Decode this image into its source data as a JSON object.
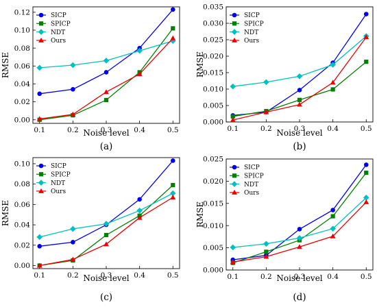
{
  "chart_data": [
    {
      "type": "line",
      "panel_label": "(a)",
      "xlabel": "Noise level",
      "ylabel": "RMSE",
      "x": [
        0.1,
        0.2,
        0.3,
        0.4,
        0.5
      ],
      "xlim": [
        0.08,
        0.52
      ],
      "ylim": [
        -0.004,
        0.126
      ],
      "xticks": [
        "0.1",
        "0.2",
        "0.3",
        "0.4",
        "0.5"
      ],
      "yticks": [
        0,
        0.02,
        0.04,
        0.06,
        0.08,
        0.1,
        0.12
      ],
      "ytick_labels": [
        "0.00",
        "0.02",
        "0.04",
        "0.06",
        "0.08",
        "0.10",
        "0.12"
      ],
      "legend": "top-left",
      "series": [
        {
          "name": "SICP",
          "values": [
            0.029,
            0.034,
            0.053,
            0.08,
            0.123
          ]
        },
        {
          "name": "SPICP",
          "values": [
            0.0,
            0.005,
            0.022,
            0.053,
            0.102
          ]
        },
        {
          "name": "NDT",
          "values": [
            0.058,
            0.061,
            0.066,
            0.077,
            0.088
          ]
        },
        {
          "name": "Ours",
          "values": [
            0.001,
            0.006,
            0.031,
            0.051,
            0.091
          ]
        }
      ]
    },
    {
      "type": "line",
      "panel_label": "(b)",
      "xlabel": "Noise level",
      "ylabel": "RMSE",
      "x": [
        0.1,
        0.2,
        0.3,
        0.4,
        0.5
      ],
      "xlim": [
        0.08,
        0.52
      ],
      "ylim": [
        0,
        0.035
      ],
      "xticks": [
        "0.1",
        "0.2",
        "0.3",
        "0.4",
        "0.5"
      ],
      "yticks": [
        0,
        0.005,
        0.01,
        0.015,
        0.02,
        0.025,
        0.03,
        0.035
      ],
      "ytick_labels": [
        "0.000",
        "0.005",
        "0.010",
        "0.015",
        "0.020",
        "0.025",
        "0.030",
        "0.035"
      ],
      "legend": "top-left",
      "series": [
        {
          "name": "SICP",
          "values": [
            0.002,
            0.003,
            0.0097,
            0.018,
            0.0328
          ]
        },
        {
          "name": "SPICP",
          "values": [
            0.0017,
            0.0033,
            0.0067,
            0.0099,
            0.0183
          ]
        },
        {
          "name": "NDT",
          "values": [
            0.0108,
            0.0121,
            0.0139,
            0.0174,
            0.0261
          ]
        },
        {
          "name": "Ours",
          "values": [
            0.0006,
            0.003,
            0.0053,
            0.012,
            0.0258
          ]
        }
      ]
    },
    {
      "type": "line",
      "panel_label": "(c)",
      "xlabel": "Noise level",
      "ylabel": "RMSE",
      "x": [
        0.1,
        0.2,
        0.3,
        0.4,
        0.5
      ],
      "xlim": [
        0.08,
        0.52
      ],
      "ylim": [
        -0.003,
        0.106
      ],
      "xticks": [
        "0.1",
        "0.2",
        "0.3",
        "0.4",
        "0.5"
      ],
      "yticks": [
        0,
        0.02,
        0.04,
        0.06,
        0.08,
        0.1
      ],
      "ytick_labels": [
        "0.00",
        "0.02",
        "0.04",
        "0.06",
        "0.08",
        "0.10"
      ],
      "legend": "top-left",
      "series": [
        {
          "name": "SICP",
          "values": [
            0.019,
            0.023,
            0.04,
            0.065,
            0.103
          ]
        },
        {
          "name": "SPICP",
          "values": [
            0.0,
            0.005,
            0.03,
            0.049,
            0.079
          ]
        },
        {
          "name": "NDT",
          "values": [
            0.028,
            0.036,
            0.041,
            0.054,
            0.071
          ]
        },
        {
          "name": "Ours",
          "values": [
            0.0,
            0.006,
            0.021,
            0.047,
            0.067
          ]
        }
      ]
    },
    {
      "type": "line",
      "panel_label": "(d)",
      "xlabel": "Noise level",
      "ylabel": "RMSE",
      "x": [
        0.1,
        0.2,
        0.3,
        0.4,
        0.5
      ],
      "xlim": [
        0.08,
        0.52
      ],
      "ylim": [
        0,
        0.025
      ],
      "xticks": [
        "0.1",
        "0.2",
        "0.3",
        "0.4",
        "0.5"
      ],
      "yticks": [
        0,
        0.005,
        0.01,
        0.015,
        0.02,
        0.025
      ],
      "ytick_labels": [
        "0.000",
        "0.005",
        "0.010",
        "0.015",
        "0.020",
        "0.025"
      ],
      "legend": "top-left",
      "series": [
        {
          "name": "SICP",
          "values": [
            0.0023,
            0.0033,
            0.0092,
            0.0135,
            0.0237
          ]
        },
        {
          "name": "SPICP",
          "values": [
            0.0016,
            0.0041,
            0.0067,
            0.0121,
            0.0219
          ]
        },
        {
          "name": "NDT",
          "values": [
            0.0051,
            0.0059,
            0.0072,
            0.0093,
            0.0163
          ]
        },
        {
          "name": "Ours",
          "values": [
            0.0018,
            0.003,
            0.0052,
            0.0076,
            0.0153
          ]
        }
      ]
    }
  ],
  "series_styles": [
    {
      "color": "#0000ee",
      "marker": "circle"
    },
    {
      "color": "#007f00",
      "marker": "square"
    },
    {
      "color": "#00bfbf",
      "marker": "diamond"
    },
    {
      "color": "#ee0000",
      "marker": "triangle"
    }
  ]
}
